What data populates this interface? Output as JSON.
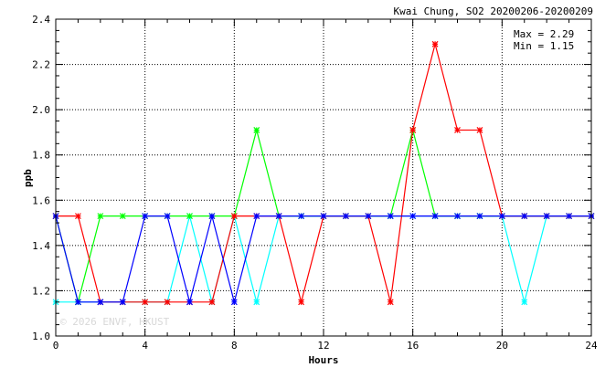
{
  "chart_data": {
    "type": "line",
    "title": "Kwai Chung, SO2 20200206-20200209",
    "xlabel": "Hours",
    "ylabel": "ppb",
    "xlim": [
      0,
      24
    ],
    "ylim": [
      1.0,
      2.4
    ],
    "xticks": [
      0,
      4,
      8,
      12,
      16,
      20,
      24
    ],
    "yticks": [
      1.0,
      1.2,
      1.4,
      1.6,
      1.8,
      2.0,
      2.2,
      2.4
    ],
    "ytick_labels": [
      "1.0",
      "1.2",
      "1.4",
      "1.6",
      "1.8",
      "2.0",
      "2.2",
      "2.4"
    ],
    "grid": true,
    "stats": {
      "max_label": "Max = 2.29",
      "min_label": "Min = 1.15"
    },
    "watermark": "© 2026  ENVF, HKUST",
    "x": [
      0,
      1,
      2,
      3,
      4,
      5,
      6,
      7,
      8,
      9,
      10,
      11,
      12,
      13,
      14,
      15,
      16,
      17,
      18,
      19,
      20,
      21,
      22,
      23,
      24
    ],
    "series": [
      {
        "color": "#00ffff",
        "values": [
          1.15,
          1.15,
          1.15,
          1.15,
          1.15,
          1.15,
          1.53,
          1.15,
          1.53,
          1.15,
          1.53,
          1.53,
          1.53,
          1.53,
          1.53,
          1.53,
          1.53,
          1.53,
          1.53,
          1.53,
          1.53,
          1.15,
          1.53,
          1.53,
          1.53
        ]
      },
      {
        "color": "#00ff00",
        "values": [
          1.53,
          1.15,
          1.53,
          1.53,
          1.53,
          1.53,
          1.53,
          1.53,
          1.53,
          1.91,
          1.53,
          1.53,
          1.53,
          1.53,
          1.53,
          1.53,
          1.91,
          1.53,
          1.53,
          1.53,
          1.53,
          1.53,
          1.53,
          1.53,
          1.53
        ]
      },
      {
        "color": "#ff0000",
        "values": [
          1.53,
          1.53,
          1.15,
          1.15,
          1.15,
          1.15,
          1.15,
          1.15,
          1.53,
          1.53,
          1.53,
          1.15,
          1.53,
          1.53,
          1.53,
          1.15,
          1.91,
          2.29,
          1.91,
          1.91,
          1.53,
          1.53,
          1.53,
          1.53,
          1.53
        ]
      },
      {
        "color": "#0000ff",
        "values": [
          1.53,
          1.15,
          1.15,
          1.15,
          1.53,
          1.53,
          1.15,
          1.53,
          1.15,
          1.53,
          1.53,
          1.53,
          1.53,
          1.53,
          1.53,
          1.53,
          1.53,
          1.53,
          1.53,
          1.53,
          1.53,
          1.53,
          1.53,
          1.53,
          1.53
        ]
      }
    ]
  }
}
